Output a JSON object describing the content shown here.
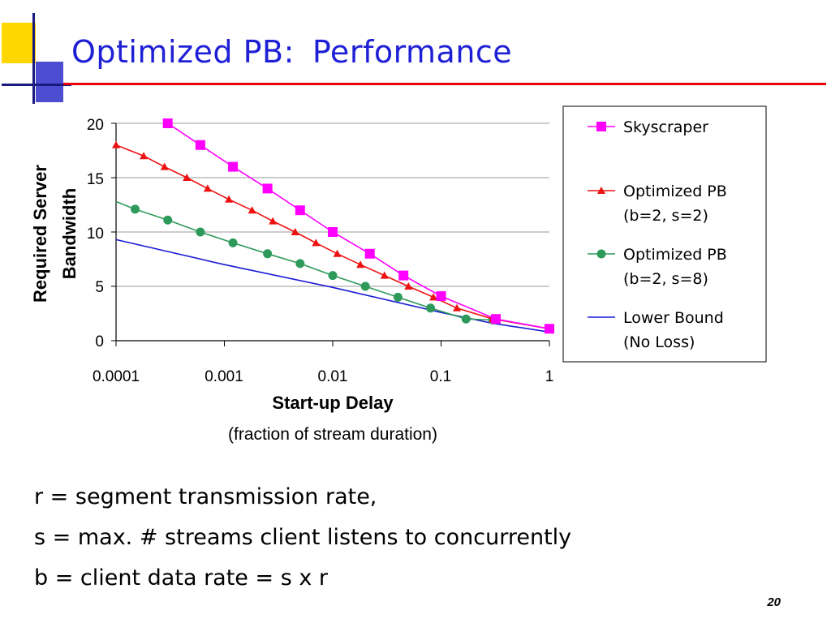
{
  "slide": {
    "title_main": "Optimized PB:",
    "title_sub": "Performance",
    "notes": [
      "r = segment transmission rate,",
      "s = max. # streams client listens to concurrently",
      "b = client data rate = s x r"
    ],
    "page_number": "20",
    "title_color": "#1f1fd6",
    "deco_colors": {
      "yellow": "#ffd700",
      "blue": "#3333cc",
      "red": "#e8000b"
    }
  },
  "chart_data": {
    "type": "line",
    "xscale": "log",
    "xlim": [
      0.0001,
      1
    ],
    "ylim": [
      0,
      20
    ],
    "xticks": [
      "0.0001",
      "0.001",
      "0.01",
      "0.1",
      "1"
    ],
    "yticks": [
      "0",
      "5",
      "10",
      "15",
      "20"
    ],
    "xlabel": "Start-up Delay",
    "xlabel_sub": "(fraction of stream duration)",
    "ylabel": [
      "Required Server",
      "Bandwidth"
    ],
    "grid": "horizontal",
    "legend_position": "right",
    "series": [
      {
        "name": "Skyscraper",
        "color": "#ff00ff",
        "marker": "square",
        "points": [
          [
            0.0003,
            20
          ],
          [
            0.0006,
            18
          ],
          [
            0.0012,
            16
          ],
          [
            0.0025,
            14
          ],
          [
            0.005,
            12
          ],
          [
            0.01,
            10
          ],
          [
            0.022,
            8
          ],
          [
            0.045,
            6
          ],
          [
            0.1,
            4.1
          ],
          [
            0.32,
            2
          ],
          [
            1,
            1.1
          ]
        ]
      },
      {
        "name": [
          "Optimized PB",
          "(b=2,  s=2)"
        ],
        "color": "#ee1111",
        "marker": "triangle",
        "points": [
          [
            0.0001,
            18
          ],
          [
            0.00018,
            17
          ],
          [
            0.00028,
            16
          ],
          [
            0.00045,
            15
          ],
          [
            0.0007,
            14
          ],
          [
            0.0011,
            13
          ],
          [
            0.0018,
            12
          ],
          [
            0.0028,
            11
          ],
          [
            0.0045,
            10
          ],
          [
            0.007,
            9
          ],
          [
            0.011,
            8
          ],
          [
            0.018,
            7
          ],
          [
            0.03,
            6
          ],
          [
            0.05,
            5
          ],
          [
            0.085,
            4
          ],
          [
            0.14,
            3
          ],
          [
            0.3,
            2
          ],
          [
            1,
            1.1
          ]
        ]
      },
      {
        "name": [
          "Optimized PB",
          "(b=2, s=8)"
        ],
        "color": "#2e9a5a",
        "marker": "circle",
        "line_start": [
          0.0001,
          12.8
        ],
        "points": [
          [
            0.00015,
            12.1
          ],
          [
            0.0003,
            11.1
          ],
          [
            0.0006,
            10
          ],
          [
            0.0012,
            9
          ],
          [
            0.0025,
            8
          ],
          [
            0.005,
            7.1
          ],
          [
            0.01,
            6
          ],
          [
            0.02,
            5
          ],
          [
            0.04,
            4
          ],
          [
            0.08,
            3
          ],
          [
            0.17,
            2
          ],
          [
            0.3,
            1.9
          ]
        ]
      },
      {
        "name": [
          "Lower Bound",
          "(No Loss)"
        ],
        "color": "#1a1ad6",
        "marker": "none",
        "points": [
          [
            0.0001,
            9.3
          ],
          [
            0.001,
            7
          ],
          [
            0.01,
            4.9
          ],
          [
            0.1,
            2.6
          ],
          [
            0.3,
            1.6
          ],
          [
            1,
            0.8
          ]
        ]
      }
    ]
  }
}
